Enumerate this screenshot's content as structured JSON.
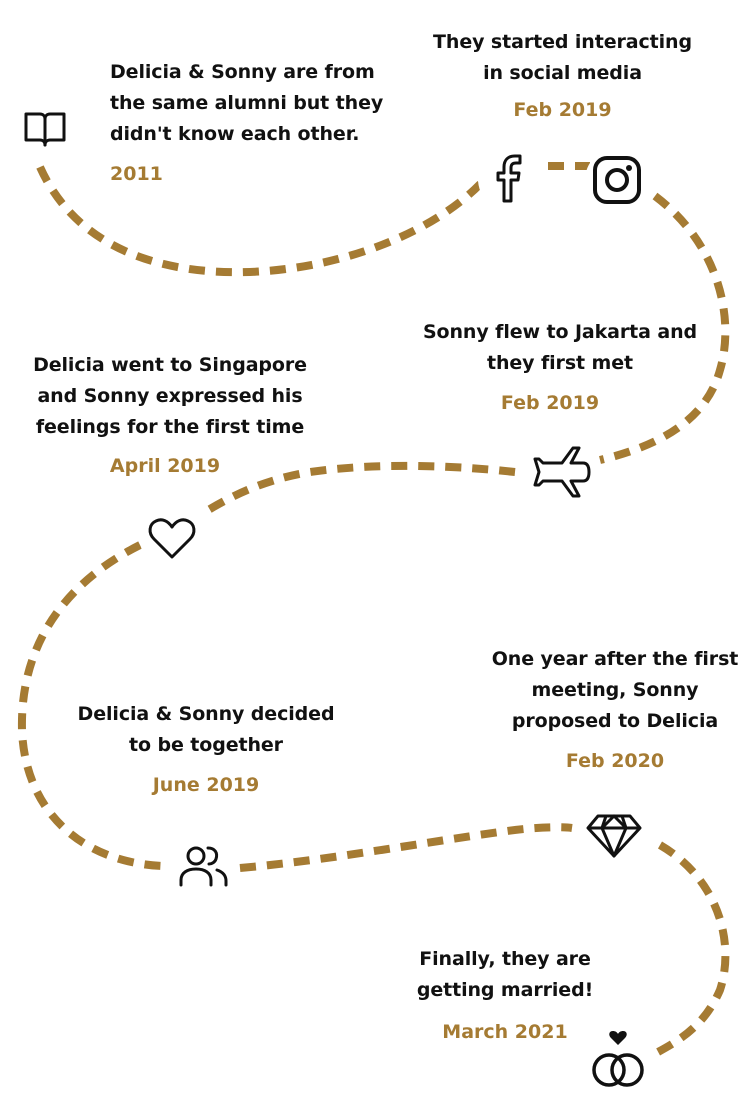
{
  "events": [
    {
      "text": "Delicia & Sonny are from the same alumni but they didn't know each other.",
      "date": "2011",
      "icon": "book-icon"
    },
    {
      "text": "They started interacting in social media",
      "date": "Feb 2019",
      "icon": "facebook-icon"
    },
    {
      "text": "Sonny flew to Jakarta and they first met",
      "date": "Feb 2019",
      "icon": "airplane-icon"
    },
    {
      "text": "Delicia went to Singapore and Sonny expressed his feelings for the first time",
      "date": "April 2019",
      "icon": "heart-icon"
    },
    {
      "text": "Delicia & Sonny decided to be together",
      "date": "June 2019",
      "icon": "users-icon"
    },
    {
      "text": "One year after the first meeting, Sonny proposed to Delicia",
      "date": "Feb 2020",
      "icon": "diamond-icon"
    },
    {
      "text": "Finally, they are getting married!",
      "date": "March 2021",
      "icon": "rings-icon"
    }
  ],
  "colors": {
    "accent": "#a57b33",
    "text": "#111111"
  }
}
